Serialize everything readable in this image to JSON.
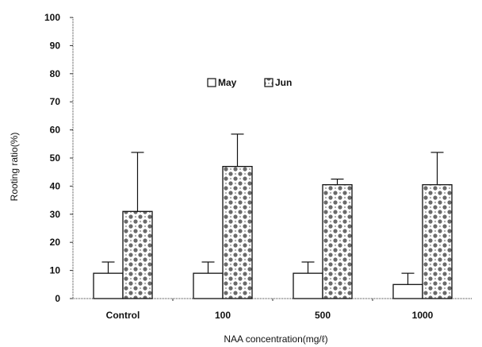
{
  "chart_data": {
    "type": "bar",
    "categories": [
      "Control",
      "100",
      "500",
      "1000"
    ],
    "series": [
      {
        "name": "May",
        "values": [
          9,
          9,
          9,
          5
        ],
        "errors": [
          4,
          4,
          4,
          4
        ]
      },
      {
        "name": "Jun",
        "values": [
          31,
          47,
          40.5,
          40.5
        ],
        "errors": [
          21,
          11.5,
          2,
          11.5
        ]
      }
    ],
    "xlabel": "NAA concentration(mg/ℓ)",
    "ylabel": "Rooting ratio(%)",
    "ylim": [
      0,
      100
    ],
    "yticks": [
      0,
      10,
      20,
      30,
      40,
      50,
      60,
      70,
      80,
      90,
      100
    ],
    "grid": false,
    "legend_position": "upper-center",
    "colors": {
      "May": "#ffffff",
      "Jun": "#b8b8b8",
      "stroke": "#111111"
    }
  }
}
